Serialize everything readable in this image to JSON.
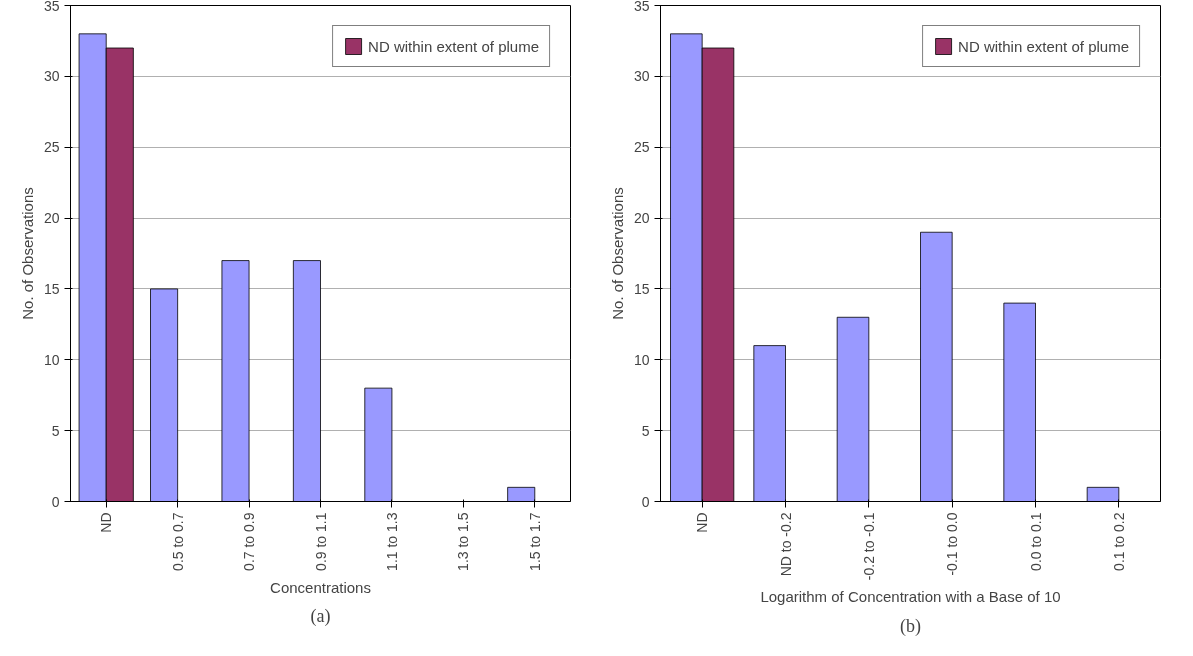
{
  "chart_data": [
    {
      "type": "bar",
      "xlabel": "Concentrations",
      "ylabel": "No. of Observations",
      "annotations": [
        "(a)"
      ],
      "categories": [
        "ND",
        "0.5 to 0.7",
        "0.7 to 0.9",
        "0.9 to 1.1",
        "1.1 to 1.3",
        "1.3 to 1.5",
        "1.5 to 1.7"
      ],
      "series": [
        {
          "color": "#9999ff",
          "values": [
            33,
            15,
            17,
            17,
            8,
            0,
            1
          ]
        },
        {
          "name": "ND within extent of plume",
          "color": "#993366",
          "values": [
            32,
            null,
            null,
            null,
            null,
            null,
            null
          ]
        }
      ],
      "ylim": [
        0,
        35
      ],
      "yticks": [
        0,
        5,
        10,
        15,
        20,
        25,
        30,
        35
      ],
      "grid": "y",
      "legend": "top right"
    },
    {
      "type": "bar",
      "xlabel": "Logarithm of Concentration with a Base of 10",
      "ylabel": "No. of Observations",
      "annotations": [
        "(b)"
      ],
      "categories": [
        "ND",
        "ND to -0.2",
        "-0.2 to -0.1",
        "-0.1 to 0.0",
        "0.0 to 0.1",
        "0.1 to 0.2"
      ],
      "series": [
        {
          "color": "#9999ff",
          "values": [
            33,
            11,
            13,
            19,
            14,
            1
          ]
        },
        {
          "name": "ND within extent of plume",
          "color": "#993366",
          "values": [
            32,
            null,
            null,
            null,
            null,
            null
          ]
        }
      ],
      "ylim": [
        0,
        35
      ],
      "yticks": [
        0,
        5,
        10,
        15,
        20,
        25,
        30,
        35
      ],
      "grid": "y",
      "legend": "top right"
    }
  ]
}
